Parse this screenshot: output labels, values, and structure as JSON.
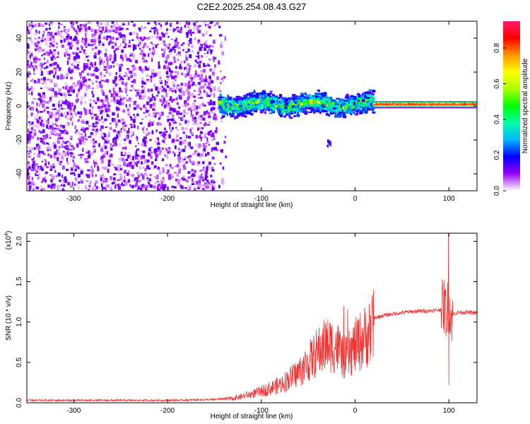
{
  "title": "C2E2.2025.254.08.43.G27",
  "chart_data": [
    {
      "type": "heatmap",
      "xlabel": "Height of straight line (km)",
      "ylabel": "Frequency (Hz)",
      "xlim": [
        -350,
        130
      ],
      "ylim": [
        -50,
        50
      ],
      "x_ticks": [
        -300,
        -200,
        -100,
        0,
        100
      ],
      "x_tick_labels": [
        "-300",
        "-200",
        "-100",
        "0",
        "100"
      ],
      "y_ticks": [
        -40,
        -20,
        0,
        20,
        40
      ],
      "y_tick_labels": [
        "-40",
        "-20",
        "0",
        "20",
        "40"
      ],
      "colorbar": {
        "label": "Normalized spectral amplitude",
        "range": [
          0.0,
          0.95
        ],
        "ticks": [
          0.0,
          0.2,
          0.4,
          0.6,
          0.8
        ],
        "tick_labels": [
          "0.0",
          "0.2",
          "0.4",
          "0.6",
          "0.8"
        ],
        "colors": [
          "#ffffff",
          "#9b00ff",
          "#0000ff",
          "#00b4ff",
          "#00ffaa",
          "#00ff00",
          "#aaff00",
          "#ffff00",
          "#ff9600",
          "#ff0000",
          "#ff1a66"
        ]
      },
      "regions": [
        {
          "x_range": [
            -350,
            -145
          ],
          "freq_range": [
            -50,
            50
          ],
          "amplitude": 0.05,
          "pattern": "scattered noise"
        },
        {
          "x_range": [
            -145,
            20
          ],
          "freq_center": 1,
          "freq_halfwidth": 5,
          "amplitude": 0.3,
          "pattern": "noisy band"
        },
        {
          "x_range": [
            20,
            130
          ],
          "freq_center": 1,
          "freq_halfwidth": 2,
          "amplitude": 0.75,
          "pattern": "narrow strong line"
        },
        {
          "x_range": [
            -30,
            -25
          ],
          "freq_center": -22,
          "amplitude": 0.15,
          "pattern": "small blob"
        }
      ]
    },
    {
      "type": "line",
      "xlabel": "Height of straight line (km)",
      "ylabel": "SNR (10 * v/v)",
      "y_multiplier": "(x10",
      "y_multiplier_exp": "4",
      "y_multiplier_close": ")",
      "xlim": [
        -350,
        130
      ],
      "ylim": [
        0,
        2.1
      ],
      "x_ticks": [
        -300,
        -200,
        -100,
        0,
        100
      ],
      "x_tick_labels": [
        "-300",
        "-200",
        "-100",
        "0",
        "100"
      ],
      "y_ticks": [
        0.0,
        0.5,
        1.0,
        1.5,
        2.0
      ],
      "y_tick_labels": [
        "0.0",
        "0.5",
        "1.0",
        "1.5",
        "2.0"
      ],
      "line_color": "#ee3333",
      "series": [
        {
          "x": [
            -350,
            -300,
            -250,
            -200,
            -150,
            -130,
            -110,
            -100,
            -90,
            -80,
            -70,
            -60,
            -50,
            -40,
            -30,
            -20,
            -10,
            0,
            10,
            20,
            30,
            40,
            60,
            80,
            90,
            95,
            98,
            100,
            102,
            105,
            110,
            120,
            130
          ],
          "values": [
            0.03,
            0.03,
            0.03,
            0.03,
            0.04,
            0.06,
            0.12,
            0.16,
            0.2,
            0.25,
            0.33,
            0.42,
            0.55,
            0.7,
            0.8,
            0.78,
            0.6,
            0.78,
            0.9,
            1.05,
            1.08,
            1.1,
            1.13,
            1.14,
            1.15,
            1.2,
            1.1,
            1.3,
            1.05,
            1.1,
            1.12,
            1.12,
            1.11
          ]
        }
      ],
      "spikes": [
        {
          "x": -12,
          "value": 1.2
        },
        {
          "x": -8,
          "value": 1.16
        },
        {
          "x": 99.5,
          "value": 2.1
        },
        {
          "x": 100,
          "value": 0.22
        }
      ]
    }
  ]
}
